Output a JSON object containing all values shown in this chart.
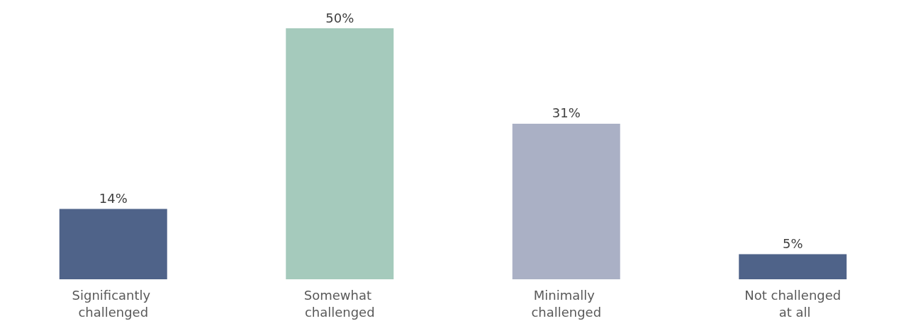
{
  "chart_data": {
    "type": "bar",
    "categories": [
      "Significantly challenged",
      "Somewhat challenged",
      "Minimally challenged",
      "Not challenged at all"
    ],
    "values": [
      14,
      50,
      31,
      5
    ],
    "colors": [
      "#4f6389",
      "#a5cabc",
      "#aab0c5",
      "#4f6389"
    ],
    "value_labels": [
      "14%",
      "50%",
      "31%",
      "5%"
    ]
  }
}
